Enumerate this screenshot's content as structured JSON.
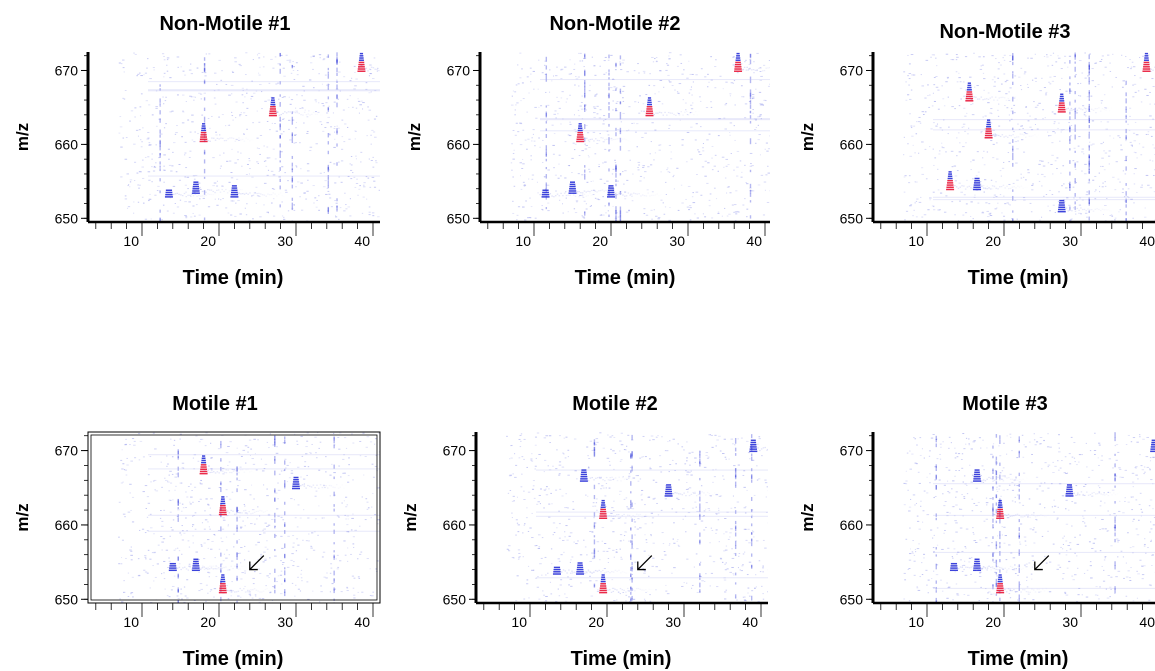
{
  "chart_data": [
    {
      "type": "heatmap",
      "title": "Non-Motile #1",
      "xlabel": "Time (min)",
      "ylabel": "m/z",
      "xlim": [
        2,
        42
      ],
      "ylim": [
        649.5,
        672.5
      ],
      "xticks": [
        "10",
        "20",
        "30",
        "40"
      ],
      "yticks": [
        "650",
        "660",
        "670"
      ],
      "features": [
        {
          "time": 18,
          "mz": 660.5,
          "intensity": "high"
        },
        {
          "time": 27,
          "mz": 664,
          "intensity": "high"
        },
        {
          "time": 38.5,
          "mz": 670,
          "intensity": "high"
        },
        {
          "time": 17,
          "mz": 653.5,
          "intensity": "medium"
        },
        {
          "time": 22,
          "mz": 653,
          "intensity": "medium"
        },
        {
          "time": 13.5,
          "mz": 653,
          "intensity": "low"
        }
      ]
    },
    {
      "type": "heatmap",
      "title": "Non-Motile #2",
      "xlabel": "Time (min)",
      "ylabel": "m/z",
      "xlim": [
        2,
        42
      ],
      "ylim": [
        649.5,
        672.5
      ],
      "xticks": [
        "10",
        "20",
        "30",
        "40"
      ],
      "yticks": [
        "650",
        "660",
        "670"
      ],
      "features": [
        {
          "time": 16,
          "mz": 660.5,
          "intensity": "high"
        },
        {
          "time": 25,
          "mz": 664,
          "intensity": "high"
        },
        {
          "time": 36.5,
          "mz": 670,
          "intensity": "high"
        },
        {
          "time": 15,
          "mz": 653.5,
          "intensity": "medium"
        },
        {
          "time": 20,
          "mz": 653,
          "intensity": "medium"
        },
        {
          "time": 11.5,
          "mz": 653,
          "intensity": "low"
        }
      ]
    },
    {
      "type": "heatmap",
      "title": "Non-Motile #3",
      "xlabel": "Time (min)",
      "ylabel": "m/z",
      "xlim": [
        2,
        42
      ],
      "ylim": [
        649.5,
        672.5
      ],
      "xticks": [
        "10",
        "20",
        "30",
        "40"
      ],
      "yticks": [
        "650",
        "660",
        "670"
      ],
      "features": [
        {
          "time": 18,
          "mz": 661,
          "intensity": "high"
        },
        {
          "time": 15.5,
          "mz": 666,
          "intensity": "high"
        },
        {
          "time": 27.5,
          "mz": 664.5,
          "intensity": "high"
        },
        {
          "time": 38.5,
          "mz": 670,
          "intensity": "high"
        },
        {
          "time": 13,
          "mz": 654,
          "intensity": "high"
        },
        {
          "time": 16.5,
          "mz": 654,
          "intensity": "medium"
        },
        {
          "time": 27.5,
          "mz": 651,
          "intensity": "medium"
        }
      ]
    },
    {
      "type": "heatmap",
      "title": "Motile #1",
      "xlabel": "Time (min)",
      "ylabel": "m/z",
      "xlim": [
        2,
        42
      ],
      "ylim": [
        649.5,
        672.5
      ],
      "xticks": [
        "10",
        "20",
        "30",
        "40"
      ],
      "yticks": [
        "650",
        "660",
        "670"
      ],
      "features": [
        {
          "time": 20.5,
          "mz": 651,
          "intensity": "high"
        },
        {
          "time": 20.5,
          "mz": 661.5,
          "intensity": "high"
        },
        {
          "time": 18,
          "mz": 667,
          "intensity": "high"
        },
        {
          "time": 30,
          "mz": 665,
          "intensity": "medium"
        },
        {
          "time": 41.5,
          "mz": 671.5,
          "intensity": "medium"
        },
        {
          "time": 17,
          "mz": 654,
          "intensity": "medium"
        },
        {
          "time": 14,
          "mz": 654,
          "intensity": "low"
        }
      ]
    },
    {
      "type": "heatmap",
      "title": "Motile #2",
      "xlabel": "Time (min)",
      "ylabel": "m/z",
      "xlim": [
        2,
        42
      ],
      "ylim": [
        649.5,
        672.5
      ],
      "xticks": [
        "10",
        "20",
        "30",
        "40"
      ],
      "yticks": [
        "650",
        "660",
        "670"
      ],
      "features": [
        {
          "time": 19.5,
          "mz": 651,
          "intensity": "high"
        },
        {
          "time": 19.5,
          "mz": 661,
          "intensity": "high"
        },
        {
          "time": 17,
          "mz": 666,
          "intensity": "medium"
        },
        {
          "time": 28,
          "mz": 664,
          "intensity": "medium"
        },
        {
          "time": 39,
          "mz": 670,
          "intensity": "medium"
        },
        {
          "time": 16.5,
          "mz": 653.5,
          "intensity": "medium"
        },
        {
          "time": 13.5,
          "mz": 653.5,
          "intensity": "low"
        }
      ]
    },
    {
      "type": "heatmap",
      "title": "Motile #3",
      "xlabel": "Time (min)",
      "ylabel": "m/z",
      "xlim": [
        2,
        42
      ],
      "ylim": [
        649.5,
        672.5
      ],
      "xticks": [
        "10",
        "20",
        "30",
        "40"
      ],
      "yticks": [
        "650",
        "660",
        "670"
      ],
      "features": [
        {
          "time": 19.5,
          "mz": 651,
          "intensity": "high"
        },
        {
          "time": 19.5,
          "mz": 661,
          "intensity": "high"
        },
        {
          "time": 16.5,
          "mz": 666,
          "intensity": "medium"
        },
        {
          "time": 28.5,
          "mz": 664,
          "intensity": "medium"
        },
        {
          "time": 39.5,
          "mz": 670,
          "intensity": "medium"
        },
        {
          "time": 16.5,
          "mz": 654,
          "intensity": "medium"
        },
        {
          "time": 13.5,
          "mz": 654,
          "intensity": "low"
        }
      ]
    }
  ],
  "colors": {
    "low": "#9fa4ec",
    "medium": "#2b33d8",
    "high": "#e8183a",
    "axis": "#000000"
  }
}
